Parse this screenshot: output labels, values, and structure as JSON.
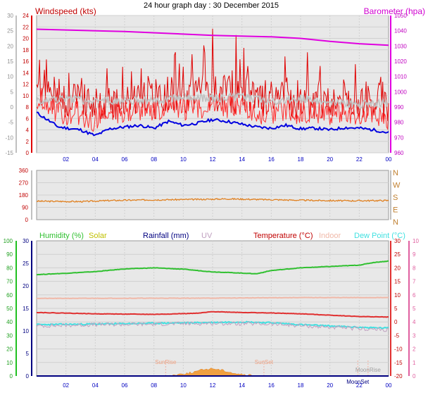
{
  "title": "24 hour graph day : 30 December 2015",
  "hour_ticks": [
    "02",
    "04",
    "06",
    "08",
    "10",
    "12",
    "14",
    "16",
    "18",
    "20",
    "22",
    "00"
  ],
  "colors": {
    "wind": "#e00000",
    "gust_grey": "#c0c0c0",
    "baro": "#e000e0",
    "dir": "#e08020",
    "humidity": "#30c030",
    "temp": "#e03030",
    "indoor": "#f0b8a8",
    "dew": "#40e0e0",
    "solar": "#f0a040",
    "rain": "#000080",
    "uv": "#c0a0c0",
    "avg": "#0000e0"
  },
  "chart_data": [
    {
      "type": "line",
      "name": "wind",
      "title": "Windspeed (kts)",
      "right_title": "Barometer (hpa)",
      "x_range": [
        0,
        24
      ],
      "left_ticks": [
        "24",
        "22",
        "20",
        "18",
        "16",
        "14",
        "12",
        "10",
        "8",
        "6",
        "4",
        "2",
        "0"
      ],
      "outer_left_ticks": [
        "30",
        "25",
        "20",
        "15",
        "10",
        "5",
        "0",
        "-5",
        "-10",
        "-15"
      ],
      "right_ticks": [
        "1050",
        "1040",
        "1030",
        "1020",
        "1010",
        "1000",
        "990",
        "980",
        "970",
        "960"
      ],
      "ylim": [
        0,
        24
      ],
      "baro_ylim": [
        960,
        1050
      ],
      "series": [
        {
          "name": "",
          "values": [
            [
              0,
              7
            ],
            [
              1.5,
              4.5
            ],
            [
              3,
              4
            ],
            [
              4,
              3
            ],
            [
              5,
              4.2
            ],
            [
              6,
              4.5
            ],
            [
              7,
              4.8
            ],
            [
              8,
              4.3
            ],
            [
              9,
              5.5
            ],
            [
              10,
              4.8
            ],
            [
              11,
              5.2
            ],
            [
              12,
              5.8
            ],
            [
              13,
              5.5
            ],
            [
              14,
              5
            ],
            [
              15,
              4.5
            ],
            [
              16,
              4.3
            ],
            [
              17,
              4.8
            ],
            [
              18,
              4.2
            ],
            [
              19,
              4.3
            ],
            [
              20,
              4
            ],
            [
              21,
              4.4
            ],
            [
              22,
              4.3
            ],
            [
              23,
              4
            ],
            [
              24,
              3.5
            ]
          ]
        },
        {
          "name": "",
          "values": [
            [
              0,
              9
            ],
            [
              2,
              9.5
            ],
            [
              4,
              9
            ],
            [
              6,
              9.3
            ],
            [
              8,
              9
            ],
            [
              10,
              9.8
            ],
            [
              12,
              9.5
            ],
            [
              14,
              9.8
            ],
            [
              16,
              9
            ],
            [
              18,
              9.5
            ],
            [
              20,
              9
            ],
            [
              22,
              8.5
            ],
            [
              24,
              8.8
            ]
          ]
        },
        {
          "name": "Barometer",
          "values": [
            [
              0,
              1041
            ],
            [
              6,
              1039.5
            ],
            [
              12,
              1037
            ],
            [
              16,
              1036
            ],
            [
              18,
              1035
            ],
            [
              20,
              1033
            ],
            [
              22,
              1031.5
            ],
            [
              24,
              1030.5
            ]
          ]
        }
      ]
    },
    {
      "type": "line",
      "name": "direction",
      "left_ticks": [
        "360",
        "270",
        "180",
        "90",
        "0"
      ],
      "right_labels": [
        "N",
        "W",
        "S",
        "E",
        "N"
      ],
      "ylim": [
        0,
        360
      ],
      "values": [
        [
          0,
          135
        ],
        [
          3,
          132
        ],
        [
          5,
          140
        ],
        [
          8,
          145
        ],
        [
          11,
          148
        ],
        [
          13,
          152
        ],
        [
          15,
          148
        ],
        [
          18,
          142
        ],
        [
          21,
          138
        ],
        [
          24,
          140
        ]
      ]
    },
    {
      "type": "line",
      "name": "weather",
      "legend": [
        "Humidity (%)",
        "Solar",
        "Rainfall (mm)",
        "UV",
        "Temperature (°C)",
        "Indoor",
        "Dew Point (°C)"
      ],
      "humidity_ticks": [
        "100",
        "90",
        "80",
        "70",
        "60",
        "50",
        "40",
        "30",
        "20",
        "10",
        "0"
      ],
      "rain_ticks": [
        "30",
        "25",
        "20",
        "15",
        "10",
        "5",
        "0"
      ],
      "temp_ticks": [
        "30",
        "25",
        "20",
        "15",
        "10",
        "5",
        "0",
        "-5",
        "-10",
        "-15",
        "-20"
      ],
      "uv_ticks": [
        "10",
        "9",
        "8",
        "7",
        "6",
        "5",
        "4",
        "3",
        "2",
        "1",
        "0"
      ],
      "annotations": [
        "SunRise",
        "SunSet",
        "MoonRise",
        "MoonSet"
      ],
      "temp_ylim": [
        -20,
        30
      ],
      "series": [
        {
          "name": "Humidity (%)",
          "axis": "temp",
          "values": [
            [
              0,
              17.5
            ],
            [
              2,
              18
            ],
            [
              4,
              18.6
            ],
            [
              6,
              19.6
            ],
            [
              8,
              20
            ],
            [
              10,
              19.5
            ],
            [
              12,
              18.5
            ],
            [
              13,
              18.3
            ],
            [
              15,
              17.8
            ],
            [
              16,
              19
            ],
            [
              18,
              20
            ],
            [
              20,
              20.5
            ],
            [
              22,
              21
            ],
            [
              23,
              22
            ],
            [
              24,
              22.5
            ]
          ]
        },
        {
          "name": "Indoor",
          "axis": "temp",
          "values": [
            [
              0,
              8.7
            ],
            [
              12,
              8.8
            ],
            [
              18,
              9
            ],
            [
              24,
              9
            ]
          ]
        },
        {
          "name": "Temperature (°C)",
          "axis": "temp",
          "values": [
            [
              0,
              3.5
            ],
            [
              4,
              3
            ],
            [
              8,
              2.8
            ],
            [
              11,
              3.2
            ],
            [
              12,
              3.8
            ],
            [
              14,
              3.5
            ],
            [
              16,
              3.3
            ],
            [
              18,
              3
            ],
            [
              20,
              2.5
            ],
            [
              22,
              2
            ],
            [
              24,
              1.8
            ]
          ]
        },
        {
          "name": "Dew Point (°C)",
          "axis": "temp",
          "values": [
            [
              0,
              -1
            ],
            [
              4,
              -0.8
            ],
            [
              8,
              -0.5
            ],
            [
              12,
              -0.2
            ],
            [
              14,
              0
            ],
            [
              16,
              -0.3
            ],
            [
              18,
              -1
            ],
            [
              20,
              -1.5
            ],
            [
              22,
              -2
            ],
            [
              24,
              -2.3
            ]
          ]
        },
        {
          "name": "UV",
          "axis": "temp",
          "values": [
            [
              0,
              -1.5
            ],
            [
              4,
              -1
            ],
            [
              8,
              -0.8
            ],
            [
              12,
              -0.5
            ],
            [
              16,
              -0.8
            ],
            [
              20,
              -2
            ],
            [
              22,
              -2.5
            ],
            [
              24,
              -3
            ]
          ]
        },
        {
          "name": "Solar",
          "axis": "temp",
          "values": [
            [
              8.8,
              -20
            ],
            [
              9.5,
              -19.5
            ],
            [
              10.5,
              -18.8
            ],
            [
              11.5,
              -17.5
            ],
            [
              12,
              -17.2
            ],
            [
              12.8,
              -18
            ],
            [
              13.5,
              -19
            ],
            [
              14.2,
              -19.6
            ],
            [
              15,
              -20
            ]
          ]
        }
      ]
    }
  ]
}
